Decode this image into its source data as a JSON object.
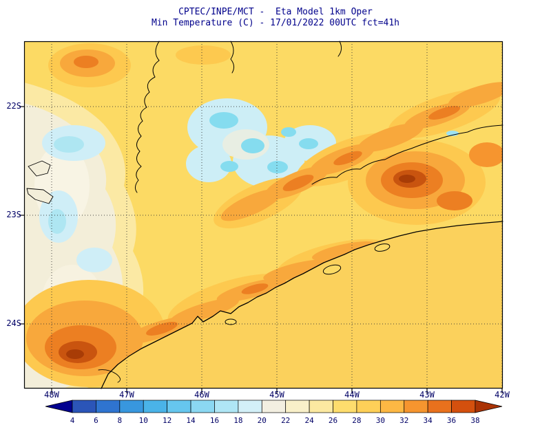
{
  "title": {
    "line1": "CPTEC/INPE/MCT -  Eta Model 1km Oper",
    "line2": "Min Temperature (C) - 17/01/2022 00UTC fct=41h"
  },
  "axes": {
    "y_labels": [
      "22S",
      "23S",
      "24S"
    ],
    "x_labels": [
      "48W",
      "47W",
      "46W",
      "45W",
      "44W",
      "43W",
      "42W"
    ]
  },
  "colorbar": {
    "tick_labels": [
      "4",
      "6",
      "8",
      "10",
      "12",
      "14",
      "16",
      "18",
      "20",
      "22",
      "24",
      "26",
      "28",
      "30",
      "32",
      "34",
      "36",
      "38"
    ],
    "segment_colors": [
      "#02018f",
      "#2b55b8",
      "#2f74d0",
      "#3897de",
      "#4ab3e8",
      "#66c6ee",
      "#8bd8f2",
      "#afe6f5",
      "#d3f0f8",
      "#f3efe1",
      "#f9f0c9",
      "#fce9a1",
      "#fedd6d",
      "#fed058",
      "#fdb844",
      "#f6952f",
      "#e9711d",
      "#d4500e",
      "#aa3305"
    ]
  },
  "map_colors": {
    "title_text": "#00008b",
    "axis_text": "#000066",
    "land_base": "#fcda64",
    "sea": "#fbd15c",
    "pale_cool_region": "#f3eed9",
    "cool_patch": "#cfeef7",
    "cold_patch": "#85dcef",
    "warm_ridge": "#f8a83c",
    "hot_core": "#c9540f",
    "coastline": "#000000"
  },
  "chart_data": {
    "type": "heatmap",
    "source": "CPTEC/INPE/MCT",
    "model": "Eta Model 1km Oper",
    "variable": "Min Temperature (C)",
    "valid": "17/01/2022 00UTC fct=41h",
    "x_tick_labels": [
      "48W",
      "47W",
      "46W",
      "45W",
      "44W",
      "43W",
      "42W"
    ],
    "y_tick_labels": [
      "22S",
      "23S",
      "24S"
    ],
    "colorbar_levels": [
      4,
      6,
      8,
      10,
      12,
      14,
      16,
      18,
      20,
      22,
      24,
      26,
      28,
      30,
      32,
      34,
      36,
      38
    ],
    "colorbar_colors": [
      "#02018f",
      "#2b55b8",
      "#2f74d0",
      "#3897de",
      "#4ab3e8",
      "#66c6ee",
      "#8bd8f2",
      "#afe6f5",
      "#d3f0f8",
      "#f3efe1",
      "#f9f0c9",
      "#fce9a1",
      "#fedd6d",
      "#fed058",
      "#fdb844",
      "#f6952f",
      "#e9711d",
      "#d4500e",
      "#aa3305"
    ]
  }
}
